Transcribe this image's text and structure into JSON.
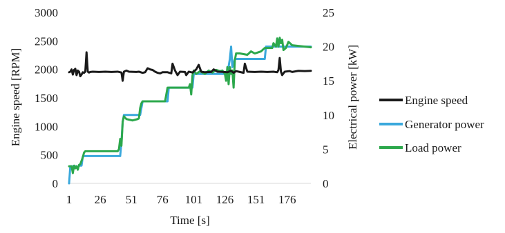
{
  "chart_data": {
    "type": "line",
    "title": "",
    "xlabel": "Time [s]",
    "ylabel_left": "Engine speed [RPM]",
    "ylabel_right": "Electrical power [kW]",
    "x_ticks": [
      1,
      26,
      51,
      76,
      101,
      126,
      151,
      176
    ],
    "y_left_ticks": [
      0,
      500,
      1000,
      1500,
      2000,
      2500,
      3000
    ],
    "y_right_ticks": [
      0,
      5,
      10,
      15,
      20,
      25
    ],
    "xlim": [
      1,
      195
    ],
    "ylim_left": [
      0,
      3000
    ],
    "ylim_right": [
      0,
      25
    ],
    "grid": false,
    "legend_position": "right",
    "series": [
      {
        "name": "Engine speed",
        "axis": "left",
        "color": "#1a1a1a",
        "points": [
          [
            1,
            1950
          ],
          [
            2,
            1960
          ],
          [
            3,
            2000
          ],
          [
            4,
            1910
          ],
          [
            5,
            1990
          ],
          [
            6,
            2010
          ],
          [
            7,
            1900
          ],
          [
            8,
            1980
          ],
          [
            9,
            1960
          ],
          [
            10,
            1880
          ],
          [
            11,
            1910
          ],
          [
            12,
            1950
          ],
          [
            13,
            1940
          ],
          [
            14,
            1960
          ],
          [
            15,
            2300
          ],
          [
            16,
            1960
          ],
          [
            17,
            1945
          ],
          [
            18,
            1955
          ],
          [
            20,
            1960
          ],
          [
            25,
            1955
          ],
          [
            30,
            1960
          ],
          [
            35,
            1955
          ],
          [
            40,
            1960
          ],
          [
            43,
            1945
          ],
          [
            44,
            1800
          ],
          [
            45,
            1960
          ],
          [
            47,
            1980
          ],
          [
            49,
            1960
          ],
          [
            55,
            1955
          ],
          [
            57,
            1960
          ],
          [
            60,
            1940
          ],
          [
            62,
            1950
          ],
          [
            64,
            2020
          ],
          [
            66,
            2000
          ],
          [
            68,
            1990
          ],
          [
            70,
            1960
          ],
          [
            72,
            1940
          ],
          [
            74,
            1930
          ],
          [
            76,
            1950
          ],
          [
            80,
            1950
          ],
          [
            83,
            1930
          ],
          [
            84,
            2100
          ],
          [
            86,
            1980
          ],
          [
            88,
            1900
          ],
          [
            90,
            1960
          ],
          [
            94,
            1955
          ],
          [
            95,
            1900
          ],
          [
            97,
            1960
          ],
          [
            100,
            1945
          ],
          [
            103,
            2000
          ],
          [
            105,
            2080
          ],
          [
            107,
            1960
          ],
          [
            110,
            1950
          ],
          [
            115,
            1955
          ],
          [
            117,
            2000
          ],
          [
            120,
            1960
          ],
          [
            125,
            1955
          ],
          [
            128,
            1950
          ],
          [
            131,
            1975
          ],
          [
            133,
            1940
          ],
          [
            135,
            1970
          ],
          [
            138,
            1955
          ],
          [
            141,
            1940
          ],
          [
            142,
            2100
          ],
          [
            144,
            1960
          ],
          [
            150,
            1955
          ],
          [
            155,
            1960
          ],
          [
            160,
            1955
          ],
          [
            165,
            1960
          ],
          [
            168,
            1950
          ],
          [
            169,
            1990
          ],
          [
            170,
            2200
          ],
          [
            171,
            1960
          ],
          [
            172,
            1900
          ],
          [
            174,
            1960
          ],
          [
            178,
            1970
          ],
          [
            180,
            1955
          ],
          [
            185,
            1975
          ],
          [
            190,
            1970
          ],
          [
            195,
            1975
          ]
        ]
      },
      {
        "name": "Generator power",
        "axis": "right",
        "color": "#3aa8dc",
        "points": [
          [
            1,
            0
          ],
          [
            2,
            2.5
          ],
          [
            7,
            2.5
          ],
          [
            8,
            2.3
          ],
          [
            9,
            2.6
          ],
          [
            11,
            2.6
          ],
          [
            12,
            3.9
          ],
          [
            13,
            4.0
          ],
          [
            40,
            4.0
          ],
          [
            42,
            4.0
          ],
          [
            43,
            6.0
          ],
          [
            44,
            9.0
          ],
          [
            45,
            10.0
          ],
          [
            55,
            10.0
          ],
          [
            58,
            10.0
          ],
          [
            60,
            12.0
          ],
          [
            78,
            12.0
          ],
          [
            80,
            12.0
          ],
          [
            81,
            14.0
          ],
          [
            98,
            14.0
          ],
          [
            100,
            14.0
          ],
          [
            101,
            16.0
          ],
          [
            125,
            16.0
          ],
          [
            128,
            16.0
          ],
          [
            130,
            18.2
          ],
          [
            131,
            20.0
          ],
          [
            132,
            17.0
          ],
          [
            134,
            18.2
          ],
          [
            155,
            18.2
          ],
          [
            158,
            18.2
          ],
          [
            159,
            20.0
          ],
          [
            195,
            20.0
          ]
        ]
      },
      {
        "name": "Load power",
        "axis": "right",
        "color": "#2ca84c",
        "points": [
          [
            1,
            2.5
          ],
          [
            3,
            2.5
          ],
          [
            4,
            1.5
          ],
          [
            5,
            2.6
          ],
          [
            6,
            2.2
          ],
          [
            7,
            2.5
          ],
          [
            8,
            2.0
          ],
          [
            9,
            2.7
          ],
          [
            10,
            2.8
          ],
          [
            11,
            3.3
          ],
          [
            12,
            3.8
          ],
          [
            13,
            4.5
          ],
          [
            14,
            4.7
          ],
          [
            40,
            4.7
          ],
          [
            41,
            5.0
          ],
          [
            42,
            6.5
          ],
          [
            43,
            5.5
          ],
          [
            44,
            9.0
          ],
          [
            45,
            9.8
          ],
          [
            47,
            9.4
          ],
          [
            52,
            9.2
          ],
          [
            56,
            9.4
          ],
          [
            57,
            9.5
          ],
          [
            58,
            11.0
          ],
          [
            59,
            11.7
          ],
          [
            60,
            12.0
          ],
          [
            76,
            12.0
          ],
          [
            78,
            12.0
          ],
          [
            79,
            13.0
          ],
          [
            80,
            14.0
          ],
          [
            97,
            14.0
          ],
          [
            98,
            14.5
          ],
          [
            99,
            13.0
          ],
          [
            100,
            15.8
          ],
          [
            101,
            16.5
          ],
          [
            103,
            16.0
          ],
          [
            106,
            16.4
          ],
          [
            110,
            16.0
          ],
          [
            113,
            16.5
          ],
          [
            116,
            16.2
          ],
          [
            119,
            16.6
          ],
          [
            122,
            16.4
          ],
          [
            124,
            16.5
          ],
          [
            126,
            16.0
          ],
          [
            127,
            15.0
          ],
          [
            128,
            17.0
          ],
          [
            129,
            14.5
          ],
          [
            130,
            17.0
          ],
          [
            131,
            16.0
          ],
          [
            132,
            16.5
          ],
          [
            133,
            14.0
          ],
          [
            134,
            18.0
          ],
          [
            135,
            19.0
          ],
          [
            138,
            19.0
          ],
          [
            144,
            18.8
          ],
          [
            147,
            19.3
          ],
          [
            150,
            19.0
          ],
          [
            155,
            19.3
          ],
          [
            158,
            19.8
          ],
          [
            164,
            19.8
          ],
          [
            165,
            20.5
          ],
          [
            167,
            20.0
          ],
          [
            168,
            21.2
          ],
          [
            169,
            20.0
          ],
          [
            170,
            21.3
          ],
          [
            171,
            20.5
          ],
          [
            172,
            21.0
          ],
          [
            173,
            19.5
          ],
          [
            175,
            19.8
          ],
          [
            177,
            20.7
          ],
          [
            180,
            20.2
          ],
          [
            185,
            20.1
          ],
          [
            190,
            20.0
          ],
          [
            195,
            19.9
          ]
        ]
      }
    ]
  }
}
